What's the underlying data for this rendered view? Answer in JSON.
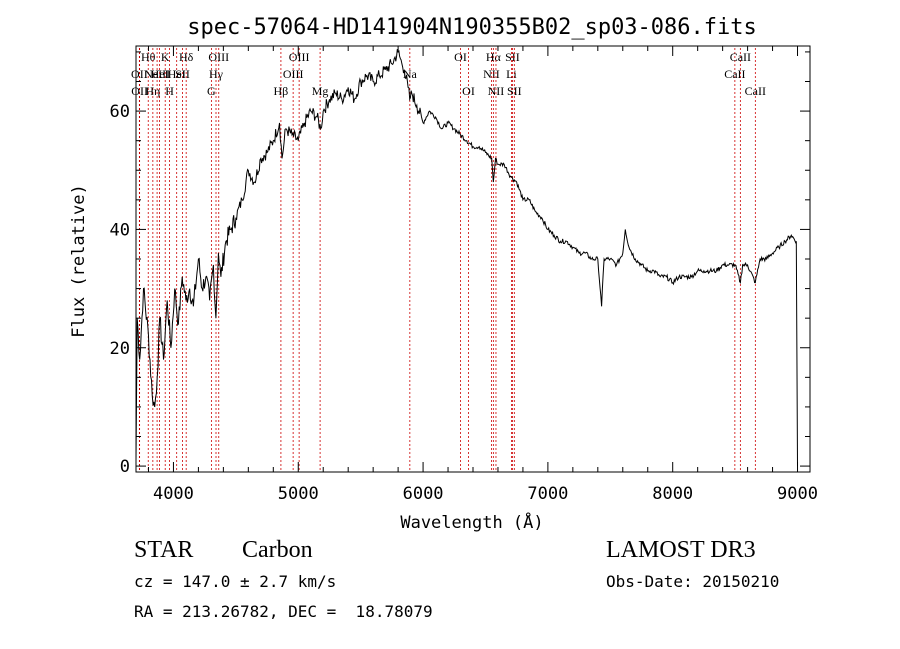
{
  "chart_data": {
    "type": "line",
    "title": "spec-57064-HD141904N190355B02_sp03-086.fits",
    "xlabel": "Wavelength (Å)",
    "ylabel": "Flux (relative)",
    "xlim": [
      3700,
      9100
    ],
    "ylim": [
      -1,
      71
    ],
    "xticks": [
      4000,
      5000,
      6000,
      7000,
      8000,
      9000
    ],
    "yticks": [
      0,
      20,
      40,
      60
    ],
    "grid": false,
    "line_color": "#000000",
    "marker_color": "#cc0000",
    "series": [
      {
        "x": [
          3700,
          3710,
          3730,
          3760,
          3800,
          3830,
          3850,
          3870,
          3890,
          3920,
          3950,
          3980,
          4010,
          4040,
          4070,
          4100,
          4130,
          4160,
          4200,
          4230,
          4260,
          4290,
          4320,
          4340,
          4360,
          4380,
          4420,
          4460,
          4500,
          4550,
          4600,
          4650,
          4700,
          4750,
          4800,
          4850,
          4870,
          4900,
          4950,
          5000,
          5050,
          5100,
          5150,
          5180,
          5200,
          5250,
          5300,
          5350,
          5400,
          5450,
          5500,
          5550,
          5600,
          5650,
          5700,
          5750,
          5800,
          5830,
          5850,
          5880,
          5893,
          5910,
          5950,
          6000,
          6050,
          6100,
          6150,
          6200,
          6250,
          6300,
          6350,
          6400,
          6450,
          6500,
          6550,
          6563,
          6580,
          6600,
          6650,
          6700,
          6750,
          6800,
          6850,
          6900,
          6950,
          7000,
          7050,
          7100,
          7150,
          7200,
          7250,
          7300,
          7350,
          7400,
          7430,
          7450,
          7500,
          7550,
          7600,
          7620,
          7650,
          7700,
          7750,
          7800,
          7850,
          7900,
          7950,
          8000,
          8050,
          8100,
          8150,
          8200,
          8250,
          8300,
          8350,
          8400,
          8450,
          8500,
          8542,
          8560,
          8600,
          8662,
          8700,
          8750,
          8800,
          8850,
          8900,
          8950,
          8990,
          9000
        ],
        "y": [
          1,
          25,
          18,
          30,
          22,
          12,
          10,
          15,
          25,
          18,
          28,
          20,
          30,
          24,
          32,
          28,
          30,
          27,
          35,
          30,
          32,
          28,
          34,
          25,
          36,
          32,
          38,
          40,
          42,
          45,
          50,
          48,
          52,
          53,
          55,
          58,
          52,
          57,
          56,
          55,
          58,
          60,
          59,
          57,
          60,
          62,
          63,
          62,
          64,
          62,
          65,
          66,
          65,
          66,
          67,
          68,
          70,
          68,
          67,
          64,
          62,
          63,
          61,
          58,
          60,
          59,
          57,
          58,
          57,
          56,
          55,
          54,
          54,
          53,
          52,
          48,
          52,
          51,
          51,
          49,
          48,
          45,
          45,
          43,
          42,
          40,
          39,
          38,
          38,
          37,
          36,
          36,
          35,
          35,
          27,
          35,
          35,
          34,
          36,
          40,
          37,
          35,
          34,
          33,
          33,
          32,
          32,
          31,
          32,
          32,
          32,
          33,
          33,
          33,
          33,
          34,
          34,
          34,
          31,
          34,
          34,
          31,
          35,
          35,
          36,
          37,
          38,
          39,
          38,
          0
        ]
      }
    ],
    "line_markers": [
      {
        "x": 3727,
        "label": "OII",
        "row": 2
      },
      {
        "x": 3729,
        "label": "OII",
        "row": 3
      },
      {
        "x": 3798,
        "label": "Hθ",
        "row": 1
      },
      {
        "x": 3835,
        "label": "Hη",
        "row": 3
      },
      {
        "x": 3869,
        "label": "NeIII",
        "row": 2
      },
      {
        "x": 3889,
        "label": "HeI",
        "row": 2
      },
      {
        "x": 3934,
        "label": "K",
        "row": 1
      },
      {
        "x": 3969,
        "label": "H",
        "row": 3
      },
      {
        "x": 4026,
        "label": "HeI",
        "row": 2
      },
      {
        "x": 4073,
        "label": "SII",
        "row": 2
      },
      {
        "x": 4102,
        "label": "Hδ",
        "row": 1
      },
      {
        "x": 4304,
        "label": "G",
        "row": 3
      },
      {
        "x": 4341,
        "label": "Hγ",
        "row": 2
      },
      {
        "x": 4363,
        "label": "OIII",
        "row": 1
      },
      {
        "x": 4861,
        "label": "Hβ",
        "row": 3
      },
      {
        "x": 4959,
        "label": "OIII",
        "row": 2
      },
      {
        "x": 5007,
        "label": "OIII",
        "row": 1
      },
      {
        "x": 5175,
        "label": "Mg",
        "row": 3
      },
      {
        "x": 5894,
        "label": "Na",
        "row": 2
      },
      {
        "x": 6300,
        "label": "OI",
        "row": 1
      },
      {
        "x": 6364,
        "label": "OI",
        "row": 3
      },
      {
        "x": 6548,
        "label": "NII",
        "row": 2
      },
      {
        "x": 6563,
        "label": "Hα",
        "row": 1
      },
      {
        "x": 6584,
        "label": "NII",
        "row": 3
      },
      {
        "x": 6708,
        "label": "Li",
        "row": 2
      },
      {
        "x": 6716,
        "label": "SII",
        "row": 1
      },
      {
        "x": 6731,
        "label": "SII",
        "row": 3
      },
      {
        "x": 8498,
        "label": "CaII",
        "row": 2
      },
      {
        "x": 8542,
        "label": "CaII",
        "row": 1
      },
      {
        "x": 8662,
        "label": "CaII",
        "row": 3
      }
    ]
  },
  "info": {
    "class": "STAR",
    "subclass": "Carbon",
    "survey": "LAMOST DR3",
    "cz": "cz = 147.0 ± 2.7 km/s",
    "obs_date": "Obs-Date: 20150210",
    "coords": "RA = 213.26782, DEC =  18.78079"
  }
}
